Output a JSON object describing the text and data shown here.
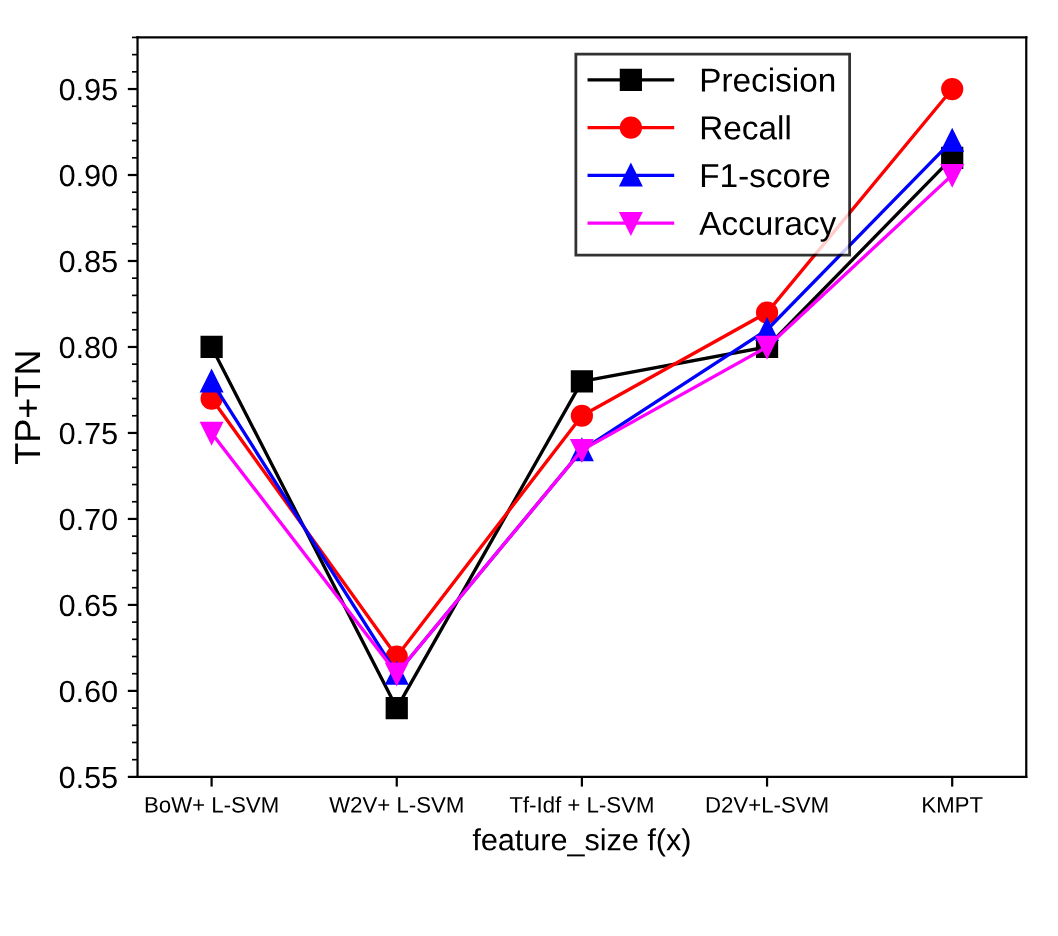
{
  "chart_data": {
    "type": "line",
    "xlabel": "feature_size f(x)",
    "ylabel": "TP+TN",
    "categories": [
      "BoW+ L-SVM",
      "W2V+ L-SVM",
      "Tf-Idf + L-SVM",
      "D2V+L-SVM",
      "KMPT"
    ],
    "series": [
      {
        "name": "Precision",
        "color": "#000000",
        "marker": "square",
        "values": [
          0.8,
          0.59,
          0.78,
          0.8,
          0.91
        ]
      },
      {
        "name": "Recall",
        "color": "#ff0000",
        "marker": "circle",
        "values": [
          0.77,
          0.62,
          0.76,
          0.82,
          0.95
        ]
      },
      {
        "name": "F1-score",
        "color": "#0000ff",
        "marker": "triangle",
        "values": [
          0.78,
          0.61,
          0.74,
          0.81,
          0.92
        ]
      },
      {
        "name": "Accuracy",
        "color": "#ff00ff",
        "marker": "triangle_down",
        "values": [
          0.75,
          0.61,
          0.74,
          0.8,
          0.9
        ]
      }
    ],
    "ylim": [
      0.55,
      0.98
    ],
    "yticks": [
      0.55,
      {
        "value": 0.6,
        "label": "0.60"
      },
      0.65,
      {
        "value": 0.7,
        "label": "0.70"
      },
      0.75,
      {
        "value": 0.8,
        "label": "0.80"
      },
      0.85,
      {
        "value": 0.9,
        "label": "0.90"
      },
      0.95
    ],
    "grid": false,
    "legend": "top right",
    "line_style": "solid"
  }
}
